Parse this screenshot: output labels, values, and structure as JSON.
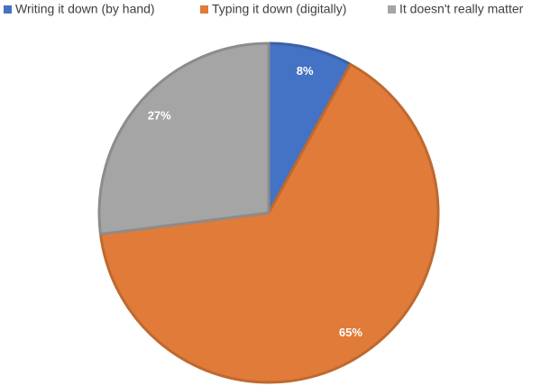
{
  "chart_data": {
    "type": "pie",
    "categories": [
      "Writing it down (by hand)",
      "Typing it down (digitally)",
      "It doesn't really matter"
    ],
    "values": [
      8,
      65,
      27
    ],
    "value_labels": [
      "8%",
      "65%",
      "27%"
    ],
    "colors": [
      "#4472c4",
      "#e07b39",
      "#a5a5a5"
    ],
    "legend": "top"
  }
}
